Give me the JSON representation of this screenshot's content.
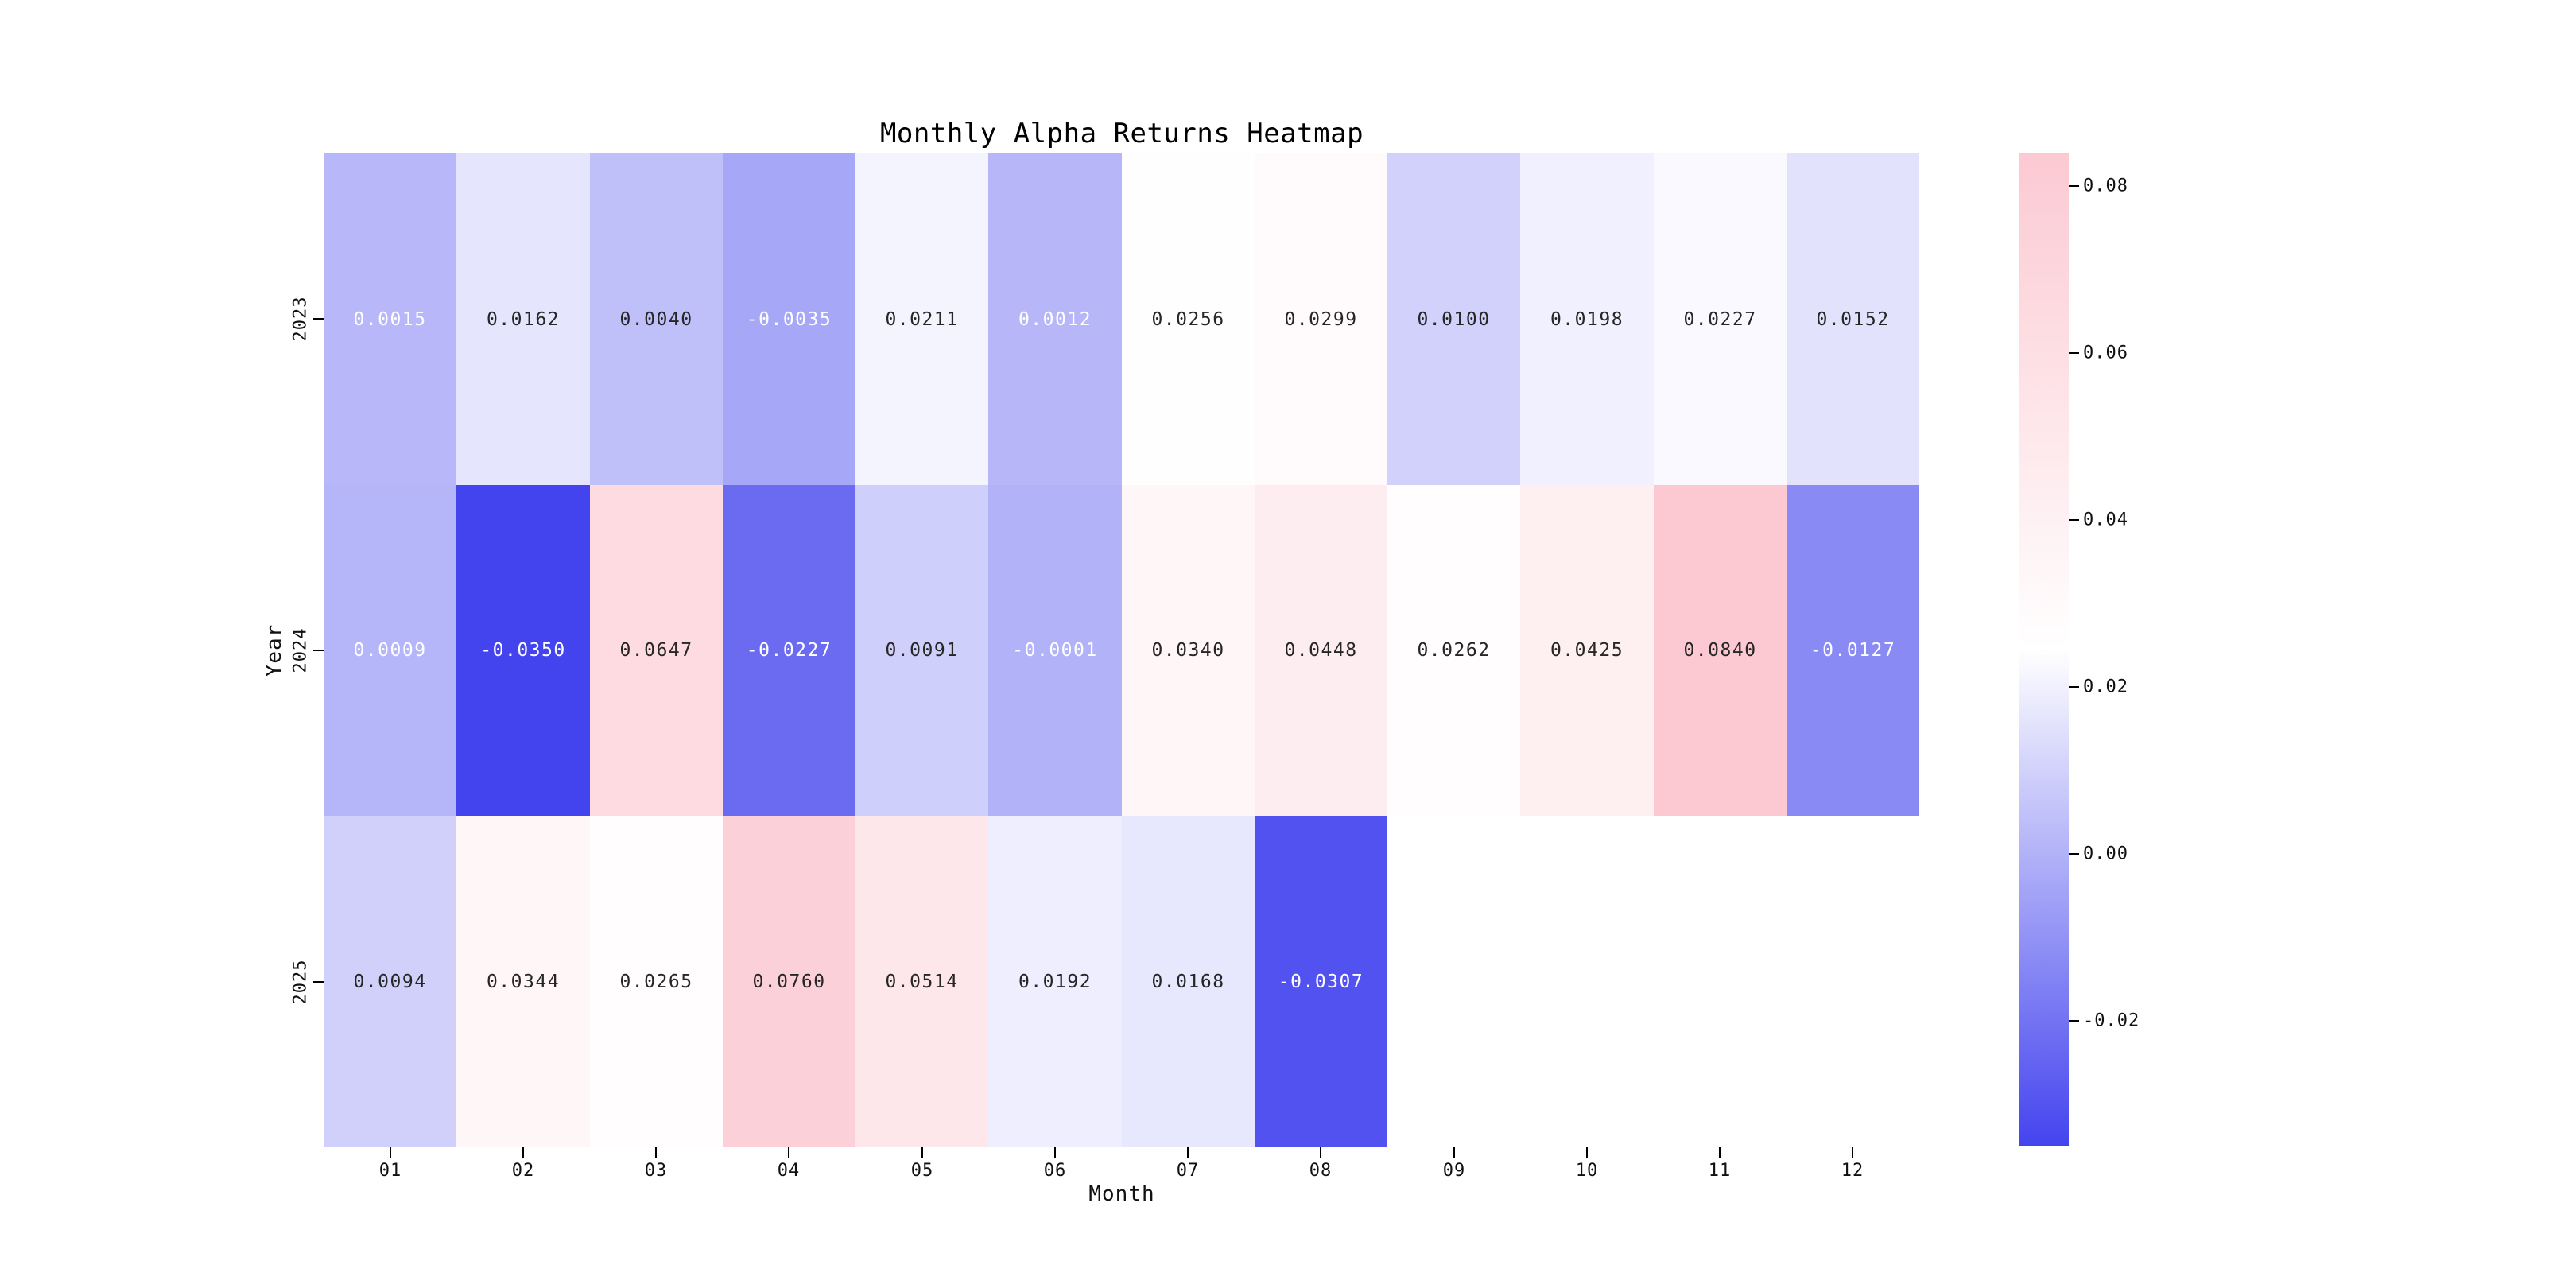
{
  "chart_data": {
    "type": "heatmap",
    "title": "Monthly Alpha Returns Heatmap",
    "xlabel": "Month",
    "ylabel": "Year",
    "x_categories": [
      "01",
      "02",
      "03",
      "04",
      "05",
      "06",
      "07",
      "08",
      "09",
      "10",
      "11",
      "12"
    ],
    "y_categories": [
      "2023",
      "2024",
      "2025"
    ],
    "series": [
      {
        "name": "2023",
        "values": [
          0.0015,
          0.0162,
          0.004,
          -0.0035,
          0.0211,
          0.0012,
          0.0256,
          0.0299,
          0.01,
          0.0198,
          0.0227,
          0.0152
        ]
      },
      {
        "name": "2024",
        "values": [
          0.0009,
          -0.035,
          0.0647,
          -0.0227,
          0.0091,
          -0.0001,
          0.034,
          0.0448,
          0.0262,
          0.0425,
          0.084,
          -0.0127
        ]
      },
      {
        "name": "2025",
        "values": [
          0.0094,
          0.0344,
          0.0265,
          0.076,
          0.0514,
          0.0192,
          0.0168,
          -0.0307,
          null,
          null,
          null,
          null
        ]
      }
    ],
    "value_decimals": 4,
    "colormap": {
      "low_color": "#4444ef",
      "mid_color": "#ffffff",
      "high_color": "#fcc9d2",
      "vmin": -0.035,
      "vmax": 0.084,
      "midpoint": 0.0245
    },
    "annotation": {
      "dark_text_color": "#262626",
      "light_text_color": "#ffffff",
      "light_text_below_value": 0.002
    },
    "colorbar": {
      "ticks": [
        0.08,
        0.06,
        0.04,
        0.02,
        0.0,
        -0.02
      ],
      "tick_labels": [
        "0.08",
        "0.06",
        "0.04",
        "0.02",
        "0.00",
        "-0.02"
      ]
    },
    "grid": false,
    "legend_position": "right-colorbar"
  }
}
